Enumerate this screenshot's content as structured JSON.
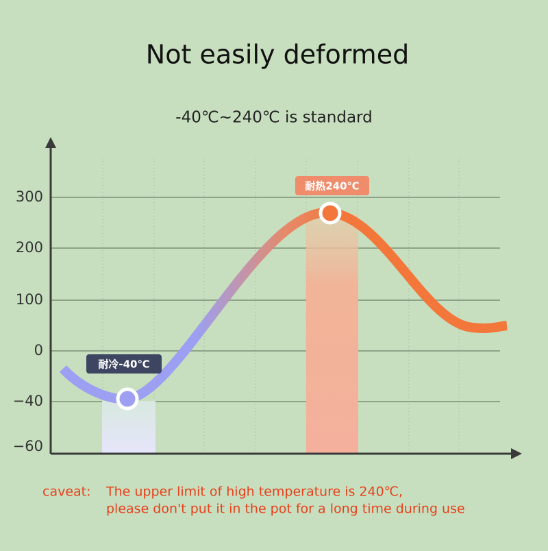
{
  "title": "Not easily deformed",
  "subtitle": "-40℃~240℃ is standard",
  "y_axis_labels": [
    "300",
    "200",
    "100",
    "0",
    "−40",
    "−60"
  ],
  "callouts": {
    "cold": "耐冷-40℃",
    "hot": "耐热240℃"
  },
  "caveat": {
    "label": "caveat:",
    "lines": [
      "The upper limit of high temperature is 240℃,",
      "please don't put it in the pot for a long time during use"
    ]
  }
}
